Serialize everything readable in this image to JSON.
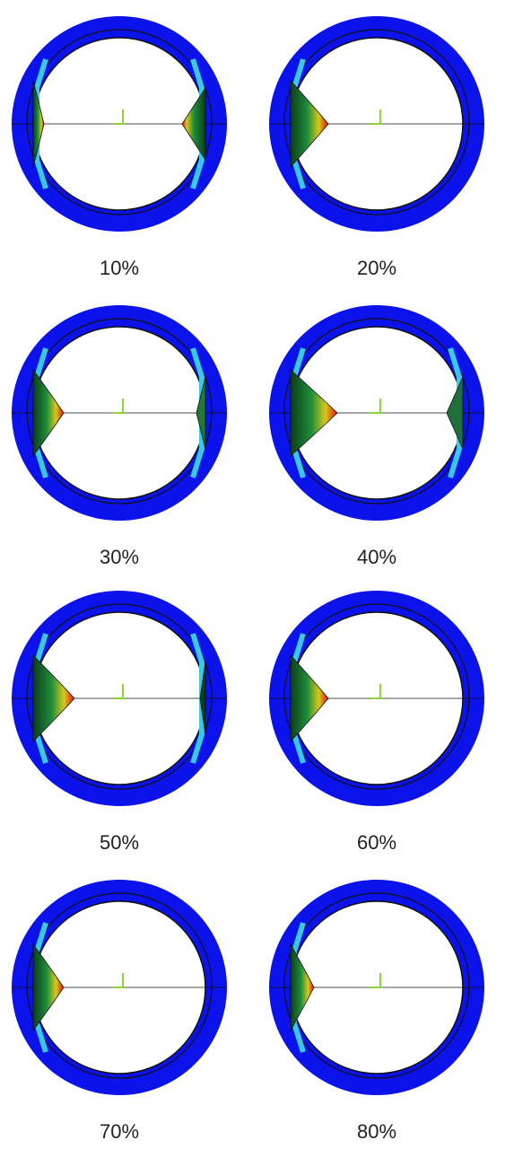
{
  "panels": [
    {
      "label": "10%"
    },
    {
      "label": "20%"
    },
    {
      "label": "30%"
    },
    {
      "label": "40%"
    },
    {
      "label": "50%"
    },
    {
      "label": "60%"
    },
    {
      "label": "70%"
    },
    {
      "label": "80%"
    }
  ]
}
